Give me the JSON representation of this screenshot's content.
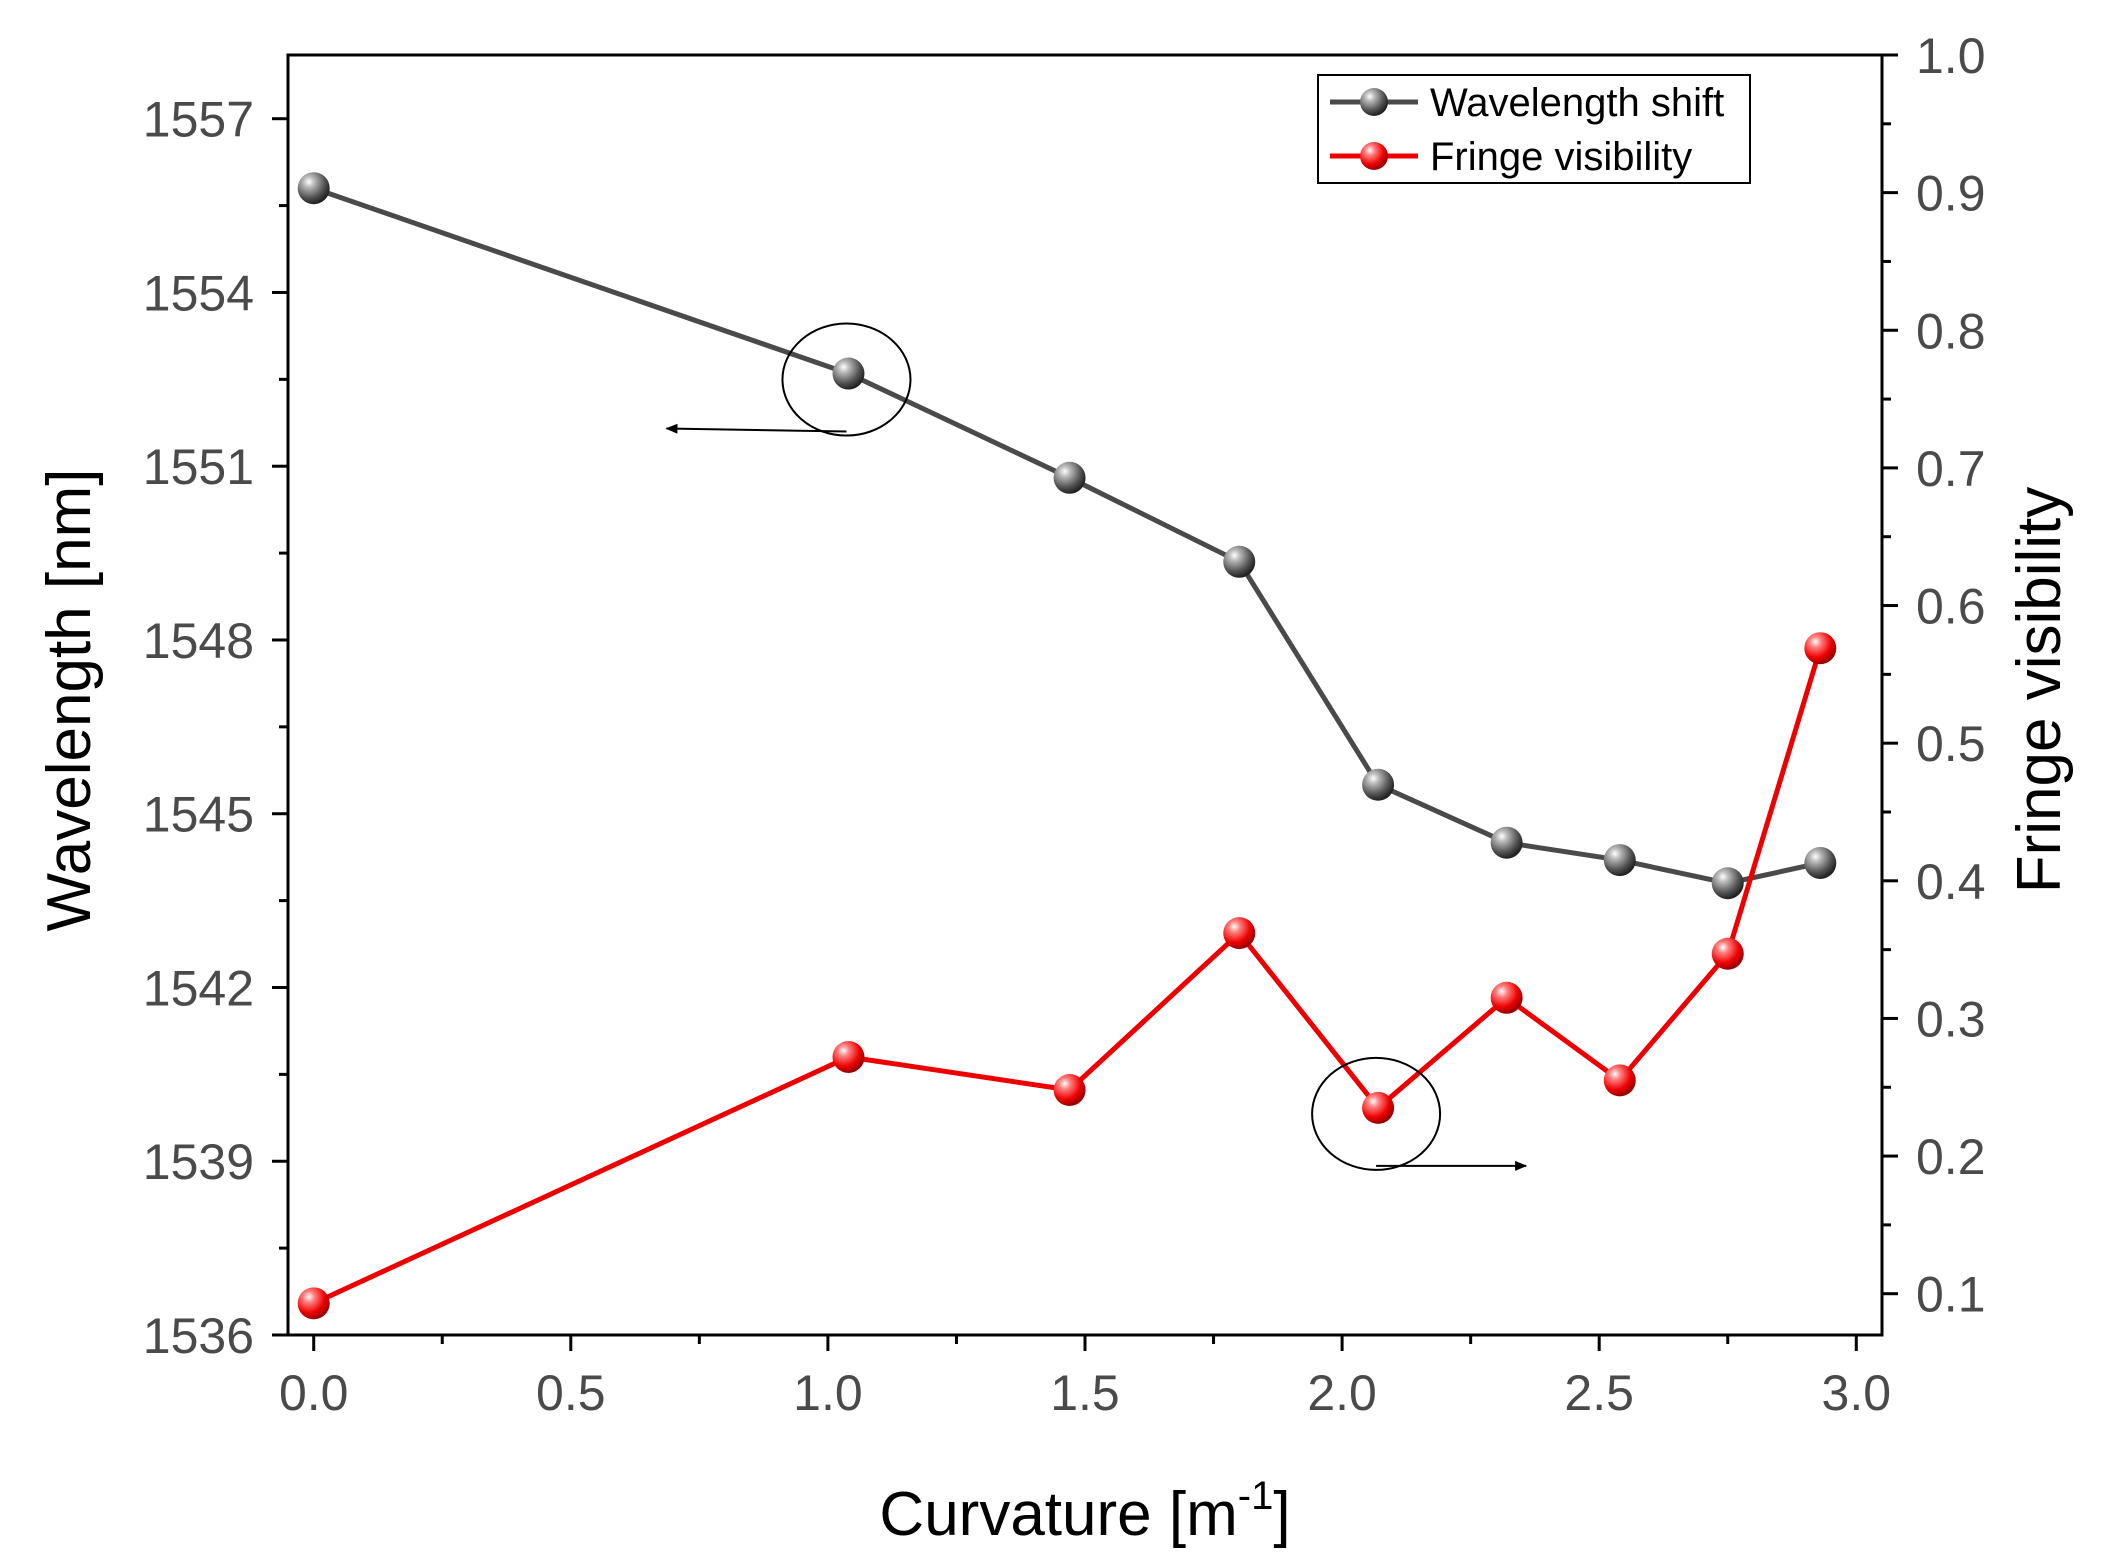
{
  "chart_data": {
    "type": "line",
    "title": "",
    "xlabel": "Curvature [m",
    "xlabel_superscript": "-1",
    "xlabel_suffix": "]",
    "ylabel_left": "Wavelength [nm]",
    "ylabel_right": "Fringe visibility",
    "xlim": [
      -0.05,
      3.05
    ],
    "ylim_left": [
      1536,
      1558.1
    ],
    "ylim_right": [
      0.07,
      1.0
    ],
    "x_ticks": [
      "0.0",
      "0.5",
      "1.0",
      "1.5",
      "2.0",
      "2.5",
      "3.0"
    ],
    "x_tick_values": [
      0.0,
      0.5,
      1.0,
      1.5,
      2.0,
      2.5,
      3.0
    ],
    "y_left_ticks": [
      "1536",
      "1539",
      "1542",
      "1545",
      "1548",
      "1551",
      "1554",
      "1557"
    ],
    "y_left_tick_values": [
      1536,
      1539,
      1542,
      1545,
      1548,
      1551,
      1554,
      1557
    ],
    "y_right_ticks": [
      "0.1",
      "0.2",
      "0.3",
      "0.4",
      "0.5",
      "0.6",
      "0.7",
      "0.8",
      "0.9",
      "1.0"
    ],
    "y_right_tick_values": [
      0.1,
      0.2,
      0.3,
      0.4,
      0.5,
      0.6,
      0.7,
      0.8,
      0.9,
      1.0
    ],
    "grid": false,
    "legend_position": "top-right",
    "series": [
      {
        "name": "Wavelength shift",
        "axis": "left",
        "color": "#4a4a4a",
        "x": [
          0.0,
          1.04,
          1.47,
          1.8,
          2.07,
          2.32,
          2.54,
          2.75,
          2.93
        ],
        "y": [
          1555.8,
          1552.6,
          1550.8,
          1549.35,
          1545.5,
          1544.5,
          1544.2,
          1543.8,
          1544.15
        ]
      },
      {
        "name": "Fringe visibility",
        "axis": "right",
        "color": "#ee0000",
        "x": [
          0.0,
          1.04,
          1.47,
          1.8,
          2.07,
          2.32,
          2.54,
          2.75,
          2.93
        ],
        "y": [
          0.093,
          0.272,
          0.248,
          0.362,
          0.235,
          0.315,
          0.255,
          0.347,
          0.569
        ]
      }
    ],
    "annotations": [
      {
        "type": "ellipse-arrow",
        "target_series": "Wavelength shift",
        "point_index": 1,
        "arrow_direction": "left"
      },
      {
        "type": "ellipse-arrow",
        "target_series": "Fringe visibility",
        "point_index": 4,
        "arrow_direction": "right"
      }
    ]
  }
}
